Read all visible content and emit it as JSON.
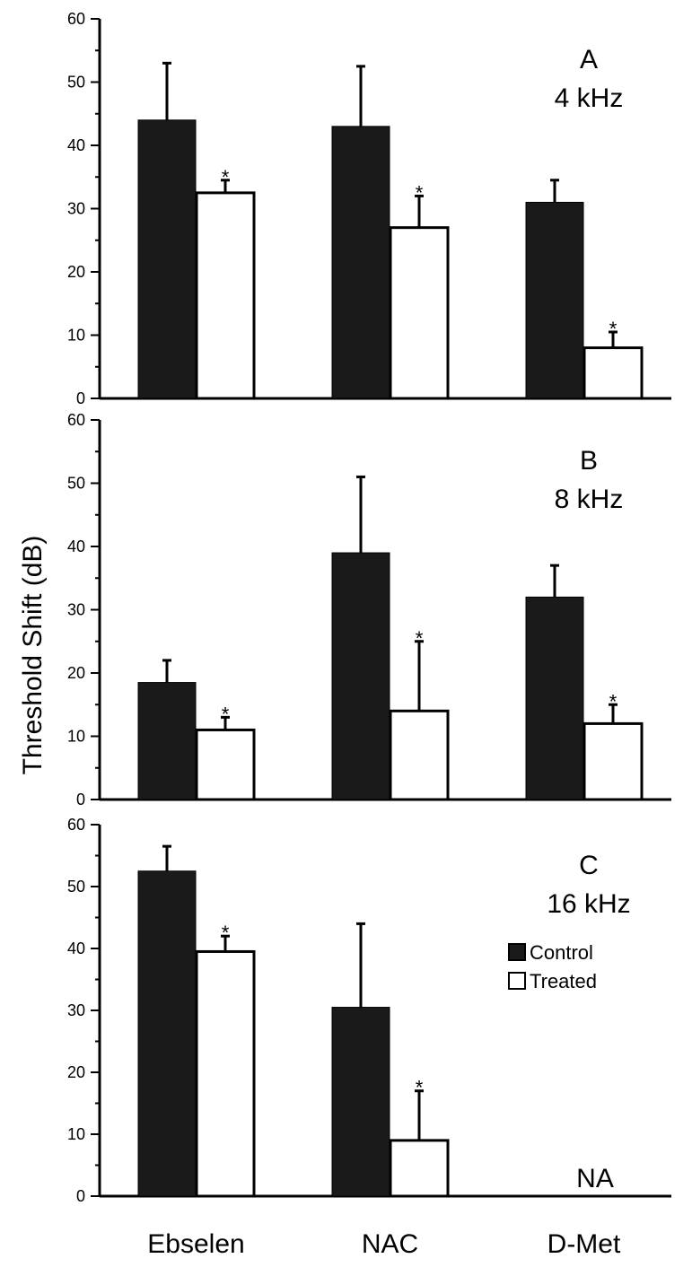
{
  "chart_data": {
    "type": "bar",
    "ylabel": "Threshold Shift (dB)",
    "categories": [
      "Ebselen",
      "NAC",
      "D-Met"
    ],
    "legend": [
      {
        "name": "Control",
        "fill": "#1a1a1a"
      },
      {
        "name": "Treated",
        "fill": "#ffffff"
      }
    ],
    "ylim": [
      0,
      60
    ],
    "yticks": [
      0,
      10,
      20,
      30,
      40,
      50,
      60
    ],
    "panels": [
      {
        "letter": "A",
        "frequency": "4 kHz",
        "series": [
          {
            "name": "Control",
            "values": [
              44,
              43,
              31
            ],
            "errors": [
              9,
              9.5,
              3.5
            ],
            "significant": [
              false,
              false,
              false
            ]
          },
          {
            "name": "Treated",
            "values": [
              32.5,
              27,
              8
            ],
            "errors": [
              2,
              5,
              2.5
            ],
            "significant": [
              true,
              true,
              true
            ]
          }
        ],
        "annotations": []
      },
      {
        "letter": "B",
        "frequency": "8 kHz",
        "series": [
          {
            "name": "Control",
            "values": [
              18.5,
              39,
              32
            ],
            "errors": [
              3.5,
              12,
              5
            ],
            "significant": [
              false,
              false,
              false
            ]
          },
          {
            "name": "Treated",
            "values": [
              11,
              14,
              12
            ],
            "errors": [
              2,
              11,
              3
            ],
            "significant": [
              true,
              true,
              true
            ]
          }
        ],
        "annotations": []
      },
      {
        "letter": "C",
        "frequency": "16 kHz",
        "series": [
          {
            "name": "Control",
            "values": [
              52.5,
              30.5,
              null
            ],
            "errors": [
              4,
              13.5,
              null
            ],
            "significant": [
              false,
              false,
              false
            ]
          },
          {
            "name": "Treated",
            "values": [
              39.5,
              9,
              null
            ],
            "errors": [
              2.5,
              8,
              null
            ],
            "significant": [
              true,
              true,
              false
            ]
          }
        ],
        "annotations": [
          {
            "category": "D-Met",
            "text": "NA"
          }
        ]
      }
    ],
    "significance_marker": "*"
  }
}
